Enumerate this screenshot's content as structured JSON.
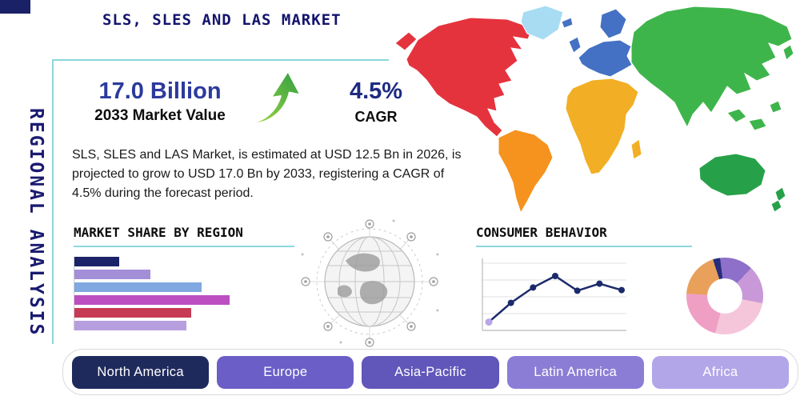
{
  "page": {
    "title": "SLS, SLES AND LAS MARKET",
    "vertical_title": "REGIONAL ANALYSIS"
  },
  "colors": {
    "accent_teal": "#8ed7dd",
    "navy": "#1b2166",
    "title_navy": "#14146e"
  },
  "stats": {
    "market_value": "17.0 Billion",
    "market_value_label": "2033 Market Value",
    "cagr_value": "4.5%",
    "cagr_label": "CAGR",
    "description": "SLS, SLES and LAS Market, is estimated at USD 12.5 Bn in 2026, is projected to grow to USD 17.0 Bn by 2033, registering a CAGR of 4.5% during the forecast period.",
    "growth_arrow_colors": {
      "from": "#a8d93f",
      "to": "#2f9e44"
    }
  },
  "sections": {
    "bar_chart_title": "MARKET SHARE BY REGION",
    "line_chart_title": "CONSUMER BEHAVIOR"
  },
  "regions": [
    {
      "label": "North America",
      "color": "#1f2a5c"
    },
    {
      "label": "Europe",
      "color": "#6b5ec6"
    },
    {
      "label": "Asia-Pacific",
      "color": "#6156ba"
    },
    {
      "label": "Latin America",
      "color": "#8b7dd6"
    },
    {
      "label": "Africa",
      "color": "#b2a5e8"
    }
  ],
  "map": {
    "continent_colors": {
      "north_america": "#e5333e",
      "greenland": "#a7dcf3",
      "south_america": "#f6921e",
      "europe": "#4471c4",
      "africa": "#f2ae24",
      "asia": "#3eb54b",
      "australia": "#27a149"
    }
  },
  "chart_data": [
    {
      "type": "bar",
      "title": "MARKET SHARE BY REGION",
      "orientation": "horizontal",
      "values": [
        29,
        49,
        82,
        100,
        75,
        72
      ],
      "colors": [
        "#1b2468",
        "#a38fd8",
        "#7fa9e0",
        "#bb4fc0",
        "#c73a55",
        "#b79ede"
      ],
      "xlim": [
        0,
        100
      ],
      "grid": false
    },
    {
      "type": "line",
      "title": "CONSUMER BEHAVIOR",
      "x": [
        1,
        2,
        3,
        4,
        5,
        6,
        7
      ],
      "values": [
        8,
        38,
        62,
        80,
        57,
        68,
        58
      ],
      "ylim": [
        0,
        100
      ],
      "color": "#1b2a6b",
      "first_point_color": "#b7a6e8",
      "grid": true,
      "legend": "none"
    },
    {
      "type": "pie",
      "donut": true,
      "values": [
        3,
        14,
        16,
        26,
        22,
        19
      ],
      "colors": [
        "#262d7d",
        "#8e6fc9",
        "#c998d8",
        "#f5c6da",
        "#ef9fc4",
        "#e9a05a"
      ],
      "rotation_deg": -18
    }
  ]
}
